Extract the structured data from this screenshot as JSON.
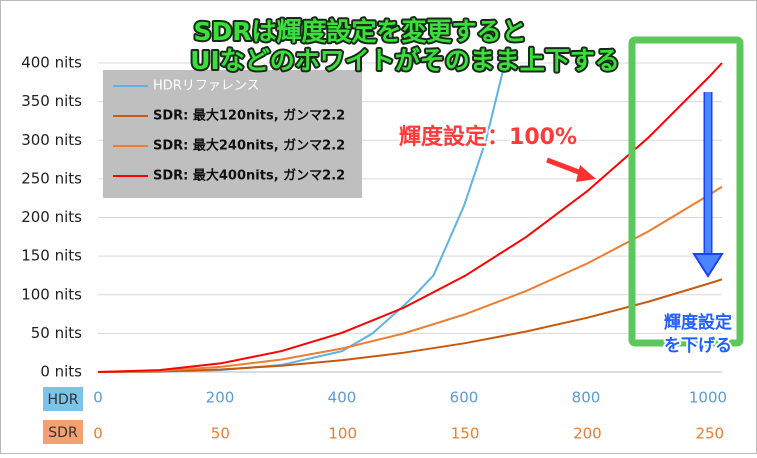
{
  "chart_data": {
    "type": "line",
    "title": [
      "SDRは輝度設定を変更すると",
      "UIなどのホワイトがそのまま上下する"
    ],
    "annotations": {
      "current": "輝度設定：100%",
      "lower": [
        "輝度設定",
        "を下げる"
      ]
    },
    "x_label": "HDR",
    "x2_label": "SDR",
    "xlim": [
      0,
      1023
    ],
    "xticks": [
      0,
      200,
      400,
      600,
      800,
      1000
    ],
    "x2lim": [
      0,
      255
    ],
    "x2ticks": [
      0,
      50,
      100,
      150,
      200,
      250
    ],
    "ylim": [
      0,
      400
    ],
    "yticks": [
      {
        "value": 0,
        "label": "0 nits"
      },
      {
        "value": 50,
        "label": "50 nits"
      },
      {
        "value": 100,
        "label": "100 nits"
      },
      {
        "value": 150,
        "label": "150 nits"
      },
      {
        "value": 200,
        "label": "200 nits"
      },
      {
        "value": 250,
        "label": "250 nits"
      },
      {
        "value": 300,
        "label": "300 nits"
      },
      {
        "value": 350,
        "label": "350 nits"
      },
      {
        "value": 400,
        "label": "400 nits"
      }
    ],
    "grid": true,
    "series": [
      {
        "name": "HDRリファレンス",
        "color": "#5fb3e2",
        "axis": "x",
        "x": [
          0,
          100,
          200,
          300,
          400,
          450,
          500,
          520,
          550,
          600,
          636,
          667
        ],
        "values": [
          0,
          0.3,
          2.5,
          9,
          27,
          50,
          85,
          100,
          125,
          215,
          300,
          400
        ]
      },
      {
        "name": "SDR: 最大120nits, ガンマ2.2",
        "color": "#c55a11",
        "axis": "x2",
        "x": [
          0,
          25,
          50,
          75,
          100,
          125,
          150,
          175,
          200,
          225,
          250,
          255
        ],
        "values": [
          0,
          0.7,
          3.3,
          8.1,
          15.3,
          25,
          37.3,
          52.4,
          70.3,
          91.1,
          114.9,
          120
        ]
      },
      {
        "name": "SDR: 最大240nits, ガンマ2.2",
        "color": "#ed7d31",
        "axis": "x2",
        "x": [
          0,
          25,
          50,
          75,
          100,
          125,
          150,
          175,
          200,
          225,
          250,
          255
        ],
        "values": [
          0,
          1.4,
          6.6,
          16.2,
          30.6,
          50,
          74.7,
          104.9,
          140.6,
          182.2,
          229.8,
          240
        ]
      },
      {
        "name": "SDR: 最大400nits, ガンマ2.2",
        "color": "#ff0000",
        "axis": "x2",
        "x": [
          0,
          25,
          50,
          75,
          100,
          125,
          150,
          175,
          200,
          225,
          250,
          255
        ],
        "values": [
          0,
          2.4,
          11.1,
          27.1,
          51,
          83.3,
          124.5,
          174.8,
          234.3,
          303.7,
          383,
          400
        ]
      }
    ]
  }
}
